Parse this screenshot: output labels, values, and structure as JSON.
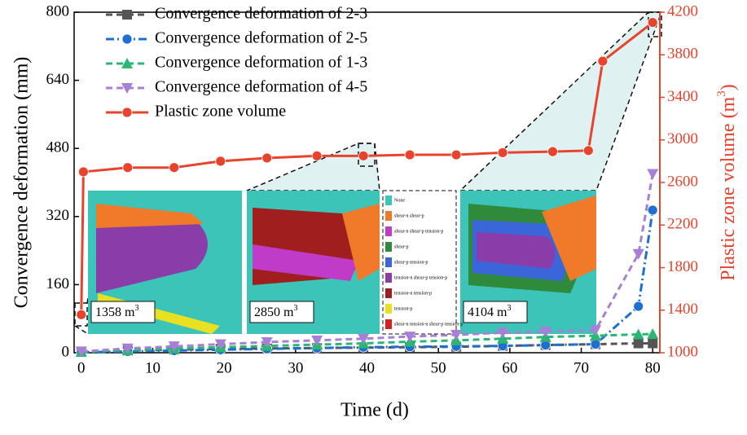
{
  "chart_data": {
    "type": "line",
    "xlabel": "Time (d)",
    "ylabel": "Convergence deformation (mm)",
    "y2label": {
      "text": "Plastic zone volume (m",
      "sup": "3",
      "tail": ")"
    },
    "xlim": [
      -1,
      81
    ],
    "xticks": [
      0,
      10,
      20,
      30,
      40,
      50,
      60,
      70,
      80
    ],
    "ylim": [
      0,
      800
    ],
    "yticks": [
      0,
      160,
      320,
      480,
      640,
      800
    ],
    "y2lim": [
      1000,
      4200
    ],
    "y2ticks": [
      1000,
      1400,
      1800,
      2200,
      2600,
      3000,
      3400,
      3800,
      4200
    ],
    "series": [
      {
        "name": "Convergence deformation of 2-3",
        "color": "#555555",
        "marker": "square",
        "dash": "8 5",
        "x": [
          0,
          6.5,
          13,
          19.5,
          26,
          33,
          39.5,
          46,
          52.5,
          59,
          65,
          72,
          78,
          80
        ],
        "values": [
          2,
          5,
          7,
          9,
          10,
          11,
          12,
          13,
          14,
          16,
          18,
          20,
          22,
          22
        ]
      },
      {
        "name": "Convergence deformation of 2-5",
        "color": "#1f6fd0",
        "marker": "circle",
        "dash": "10 4 2 4",
        "x": [
          0,
          6.5,
          13,
          19.5,
          26,
          33,
          39.5,
          46,
          52.5,
          59,
          65,
          72,
          78,
          80
        ],
        "values": [
          1,
          3,
          5,
          7,
          9,
          11,
          13,
          14,
          15,
          16,
          18,
          20,
          109,
          335
        ]
      },
      {
        "name": "Convergence deformation of 1-3",
        "color": "#2bb673",
        "marker": "triangle-up",
        "dash": "8 5",
        "x": [
          0,
          6.5,
          13,
          19.5,
          26,
          33,
          39.5,
          46,
          52.5,
          59,
          65,
          72,
          78,
          80
        ],
        "values": [
          2,
          6,
          10,
          13,
          16,
          19,
          22,
          26,
          29,
          33,
          37,
          40,
          43,
          44
        ]
      },
      {
        "name": "Convergence deformation of 4-5",
        "color": "#a77fd6",
        "marker": "triangle-down",
        "dash": "8 5",
        "x": [
          0,
          6.5,
          13,
          19.5,
          26,
          33,
          39.5,
          46,
          52.5,
          59,
          65,
          72,
          78,
          80
        ],
        "values": [
          3,
          10,
          15,
          20,
          25,
          29,
          33,
          38,
          42,
          47,
          50,
          53,
          232,
          420
        ]
      },
      {
        "name": "Plastic zone volume",
        "color": "#e8432c",
        "marker": "circle",
        "dash": "",
        "axis": "y2",
        "x": [
          0,
          0.3,
          6.5,
          13,
          19.5,
          26,
          33,
          39.5,
          46,
          52.5,
          59,
          66,
          71,
          73,
          80
        ],
        "values": [
          1358,
          2700,
          2740,
          2740,
          2800,
          2830,
          2850,
          2850,
          2860,
          2860,
          2880,
          2890,
          2900,
          3740,
          4104
        ]
      }
    ],
    "insets": [
      {
        "text": "1358 m",
        "sup": "3"
      },
      {
        "text": "2850 m",
        "sup": "3"
      },
      {
        "text": "4104 m",
        "sup": "3"
      }
    ],
    "zone_legend": {
      "labels": [
        "None",
        "shear-n shear-p",
        "shear-n shear-p tension-p",
        "shear-p",
        "shear-p tension-p",
        "tension-n shear-p tension-p",
        "tension-n tension-p",
        "tension-p",
        "shear-n tension-n shear-p tension-p"
      ],
      "colors": [
        "#3cc4b8",
        "#f07a2a",
        "#c03cc8",
        "#2f8a3c",
        "#3b66d9",
        "#8a3ca8",
        "#a01e1e",
        "#e8e020",
        "#d82020"
      ]
    }
  }
}
